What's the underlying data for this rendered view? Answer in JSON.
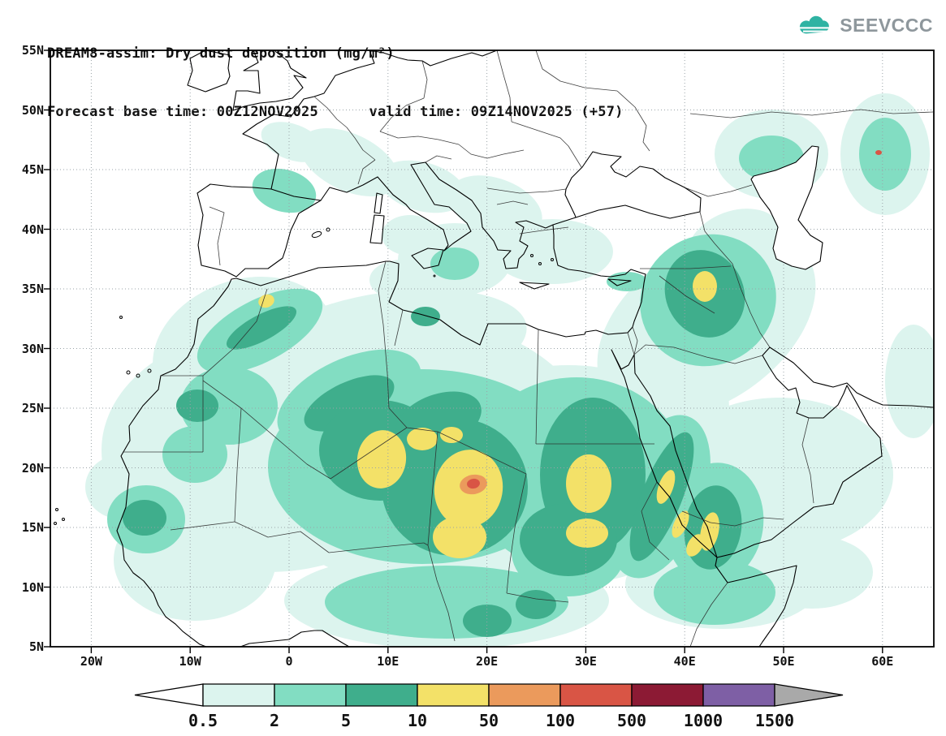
{
  "header": {
    "title_line1": "DREAM8-assim: Dry dust deposition (mg/m²)",
    "title_line2": "Forecast base time: 00Z12NOV2025      valid time: 09Z14NOV2025 (+57)"
  },
  "logo": {
    "text": "SEEVCCC",
    "cloud_color": "#2fb3a3",
    "text_color": "#8e979c"
  },
  "chart_data": {
    "type": "filled-contour-map",
    "title": "DREAM8-assim: Dry dust deposition (mg/m²)",
    "model": "DREAM8-assim",
    "variable": "Dry dust deposition",
    "units": "mg/m²",
    "forecast_base_time": "00Z12NOV2025",
    "valid_time": "09Z14NOV2025",
    "forecast_offset_hours": "+57",
    "map_extent": {
      "lon_min": -24,
      "lon_max": 65,
      "lat_min": 5,
      "lat_max": 55
    },
    "lat_ticks": [
      "55N",
      "50N",
      "45N",
      "40N",
      "35N",
      "30N",
      "25N",
      "20N",
      "15N",
      "10N",
      "5N"
    ],
    "lon_ticks": [
      "20W",
      "10W",
      "0",
      "10E",
      "20E",
      "30E",
      "40E",
      "50E",
      "60E"
    ],
    "contour_levels": [
      "0.5",
      "2",
      "5",
      "10",
      "50",
      "100",
      "500",
      "1000",
      "1500"
    ],
    "palette": [
      "#ffffff",
      "#dcf4ee",
      "#82ddc2",
      "#3fae8c",
      "#f3e168",
      "#eb9a5c",
      "#d95545",
      "#8c1a34",
      "#7e5fa5",
      "#a9a9a9"
    ],
    "grid": "dotted",
    "legend_position": "bottom",
    "hotspots": "Maxima over central Sahara (small >100 mg/m² core near 18E 18.5N), Sahel, Sudan/Red Sea coast, Yemen, northern Iraq and Atlas Mountains"
  }
}
